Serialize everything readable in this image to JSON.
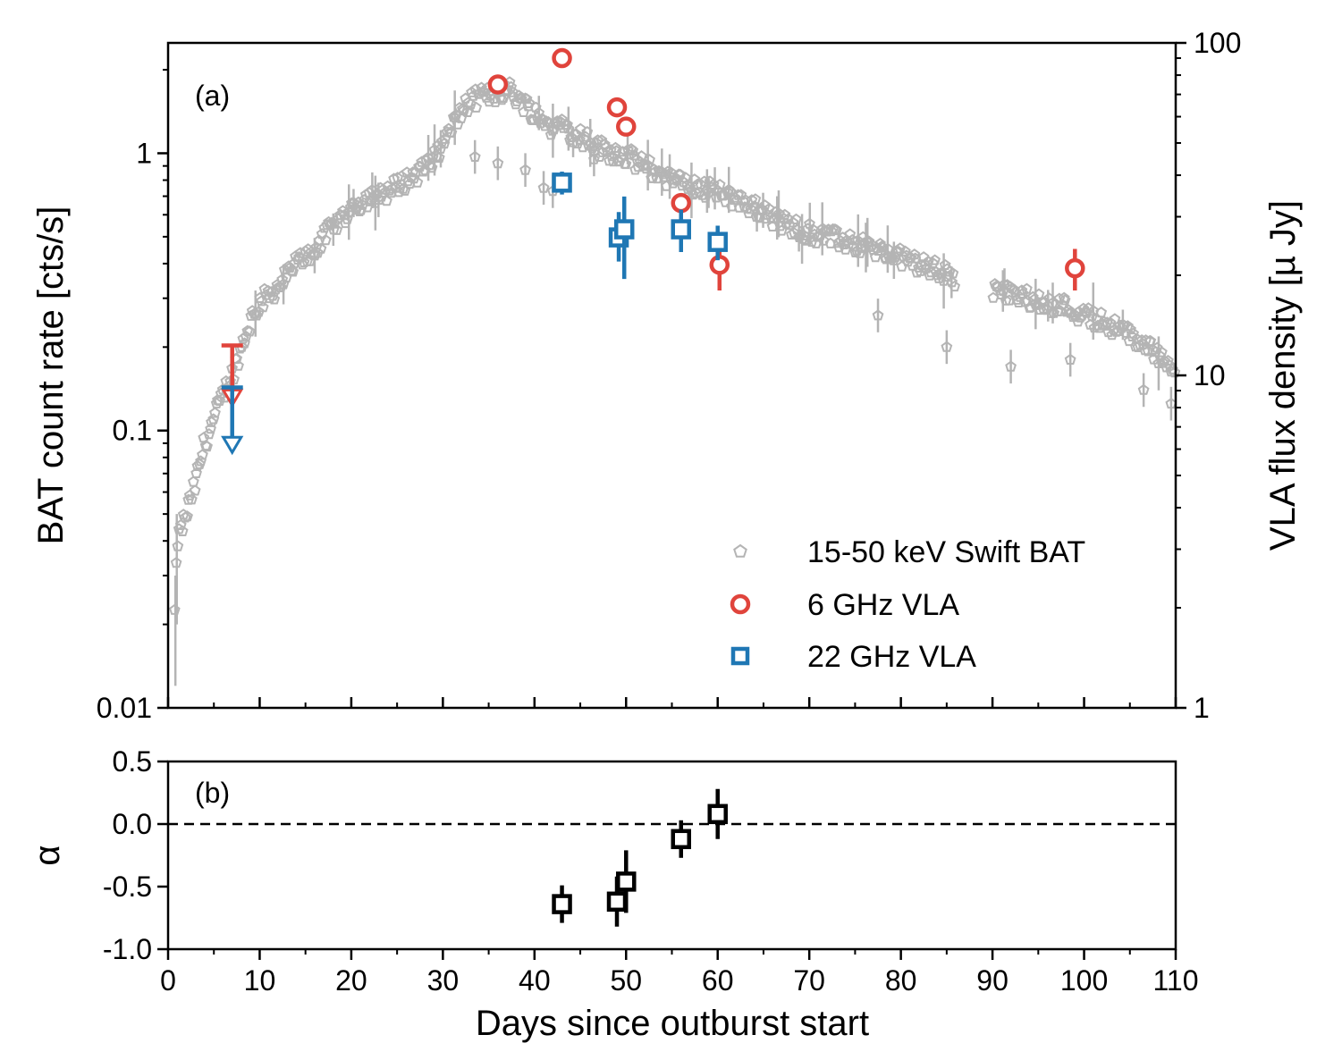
{
  "colors": {
    "bat": "#b4b4b4",
    "vla6": "#e0443c",
    "vla22": "#1f77b4",
    "alpha": "#000000"
  },
  "chart_data": [
    {
      "panel_label": "(a)",
      "type": "scatter",
      "x_axis": {
        "label": "",
        "range": [
          0,
          110
        ],
        "ticks": [
          0,
          10,
          20,
          30,
          40,
          50,
          60,
          70,
          80,
          90,
          100,
          110
        ],
        "tick_labels": []
      },
      "y_left": {
        "label": "BAT count rate [cts/s]",
        "scale": "log",
        "range": [
          0.01,
          2.5
        ],
        "ticks": [
          0.01,
          0.1,
          1
        ],
        "tick_labels": [
          "0.01",
          "0.1",
          "1"
        ]
      },
      "y_right": {
        "label": "VLA flux density [µ Jy]",
        "scale": "log",
        "range": [
          1,
          100
        ],
        "ticks": [
          1,
          10,
          100
        ],
        "tick_labels": [
          "1",
          "10",
          "100"
        ]
      },
      "legend": {
        "position": "lower-right",
        "entries": [
          {
            "label": "15-50 keV Swift BAT",
            "marker": "pentagon-open",
            "color": "#b4b4b4"
          },
          {
            "label": "6 GHz VLA",
            "marker": "circle-open",
            "color": "#e0443c"
          },
          {
            "label": "22 GHz VLA",
            "marker": "square-open",
            "color": "#1f77b4"
          }
        ]
      },
      "series": [
        {
          "name": "15-50 keV Swift BAT",
          "axis": "left",
          "marker": "pentagon-open",
          "envelope": [
            [
              0.7,
              0.022
            ],
            [
              1,
              0.04
            ],
            [
              2,
              0.05
            ],
            [
              3,
              0.065
            ],
            [
              4,
              0.09
            ],
            [
              5,
              0.11
            ],
            [
              6,
              0.135
            ],
            [
              7,
              0.16
            ],
            [
              8,
              0.2
            ],
            [
              9,
              0.25
            ],
            [
              10,
              0.29
            ],
            [
              12,
              0.33
            ],
            [
              14,
              0.4
            ],
            [
              16,
              0.45
            ],
            [
              18,
              0.55
            ],
            [
              20,
              0.63
            ],
            [
              22,
              0.7
            ],
            [
              24,
              0.73
            ],
            [
              26,
              0.8
            ],
            [
              28,
              0.88
            ],
            [
              30,
              1.05
            ],
            [
              31,
              1.25
            ],
            [
              32,
              1.4
            ],
            [
              33,
              1.55
            ],
            [
              34,
              1.6
            ],
            [
              35,
              1.62
            ],
            [
              36,
              1.65
            ],
            [
              37,
              1.72
            ],
            [
              38,
              1.6
            ],
            [
              39,
              1.5
            ],
            [
              40,
              1.4
            ],
            [
              41,
              1.3
            ],
            [
              42,
              1.25
            ],
            [
              43,
              1.28
            ],
            [
              44,
              1.2
            ],
            [
              45,
              1.15
            ],
            [
              46,
              1.1
            ],
            [
              47,
              1.05
            ],
            [
              48,
              1.02
            ],
            [
              50,
              0.98
            ],
            [
              52,
              0.9
            ],
            [
              54,
              0.83
            ],
            [
              56,
              0.78
            ],
            [
              58,
              0.76
            ],
            [
              60,
              0.72
            ],
            [
              62,
              0.68
            ],
            [
              64,
              0.64
            ],
            [
              66,
              0.58
            ],
            [
              68,
              0.55
            ],
            [
              70,
              0.52
            ],
            [
              72,
              0.5
            ],
            [
              74,
              0.48
            ],
            [
              76,
              0.46
            ],
            [
              78,
              0.44
            ],
            [
              80,
              0.42
            ],
            [
              82,
              0.4
            ],
            [
              84,
              0.38
            ],
            [
              86,
              0.35
            ],
            [
              90,
              0.32
            ],
            [
              92,
              0.31
            ],
            [
              94,
              0.3
            ],
            [
              96,
              0.29
            ],
            [
              98,
              0.28
            ],
            [
              100,
              0.26
            ],
            [
              102,
              0.25
            ],
            [
              104,
              0.23
            ],
            [
              106,
              0.21
            ],
            [
              108,
              0.19
            ],
            [
              110,
              0.17
            ]
          ],
          "outliers": [
            [
              33.5,
              0.97
            ],
            [
              36,
              0.92
            ],
            [
              39,
              0.87
            ],
            [
              41,
              0.75
            ],
            [
              42,
              0.73
            ],
            [
              46.5,
              0.95
            ],
            [
              77.5,
              0.26
            ],
            [
              85,
              0.2
            ],
            [
              92,
              0.17
            ],
            [
              98.5,
              0.18
            ],
            [
              106.5,
              0.14
            ],
            [
              109.5,
              0.125
            ]
          ]
        },
        {
          "name": "6 GHz VLA",
          "axis": "right",
          "marker": "circle-open",
          "points": [
            {
              "x": 36,
              "y": 75
            },
            {
              "x": 43,
              "y": 90
            },
            {
              "x": 49,
              "y": 64,
              "yerr": [
                2,
                2
              ]
            },
            {
              "x": 50,
              "y": 56,
              "yerr": [
                2,
                2
              ]
            },
            {
              "x": 56,
              "y": 33,
              "yerr": [
                2,
                2
              ]
            },
            {
              "x": 60.2,
              "y": 21.5,
              "yerr": [
                3.5,
                3.5
              ]
            },
            {
              "x": 99,
              "y": 21,
              "yerr": [
                3,
                3
              ]
            }
          ],
          "upper_limits": [
            {
              "x": 7,
              "y": 8.6,
              "bar_top": 12.3
            }
          ]
        },
        {
          "name": "22 GHz VLA",
          "axis": "right",
          "marker": "square-open",
          "points": [
            {
              "x": 43,
              "y": 38,
              "yerr": [
                3,
                3
              ]
            },
            {
              "x": 49.2,
              "y": 26,
              "yerr": [
                4,
                5
              ]
            },
            {
              "x": 49.8,
              "y": 27.5,
              "yerr": [
                8,
                7
              ]
            },
            {
              "x": 56,
              "y": 27.5,
              "yerr": [
                4,
                4
              ]
            },
            {
              "x": 60,
              "y": 25.2,
              "yerr": [
                3,
                3
              ]
            }
          ],
          "upper_limits": [
            {
              "x": 7,
              "y": 6.2,
              "bar_top": 9.2
            }
          ]
        }
      ]
    },
    {
      "panel_label": "(b)",
      "type": "scatter",
      "x_axis": {
        "label": "Days since outburst start",
        "range": [
          0,
          110
        ],
        "ticks": [
          0,
          10,
          20,
          30,
          40,
          50,
          60,
          70,
          80,
          90,
          100,
          110
        ],
        "tick_labels": [
          "0",
          "10",
          "20",
          "30",
          "40",
          "50",
          "60",
          "70",
          "80",
          "90",
          "100",
          "110"
        ]
      },
      "y_axis": {
        "label": "α",
        "range": [
          -1.0,
          0.5
        ],
        "ticks": [
          -1.0,
          -0.5,
          0.0,
          0.5
        ],
        "tick_labels": [
          "-1.0",
          "-0.5",
          "0.0",
          "0.5"
        ]
      },
      "reference_line": {
        "y": 0.0,
        "style": "dashed"
      },
      "series": [
        {
          "marker": "square-open",
          "points": [
            {
              "x": 43,
              "y": -0.64,
              "yerr": [
                0.15,
                0.15
              ]
            },
            {
              "x": 49,
              "y": -0.62,
              "yerr": [
                0.2,
                0.2
              ]
            },
            {
              "x": 50,
              "y": -0.46,
              "yerr": [
                0.25,
                0.25
              ]
            },
            {
              "x": 56,
              "y": -0.12,
              "yerr": [
                0.15,
                0.15
              ]
            },
            {
              "x": 60,
              "y": 0.08,
              "yerr": [
                0.2,
                0.2
              ]
            }
          ]
        }
      ]
    }
  ]
}
